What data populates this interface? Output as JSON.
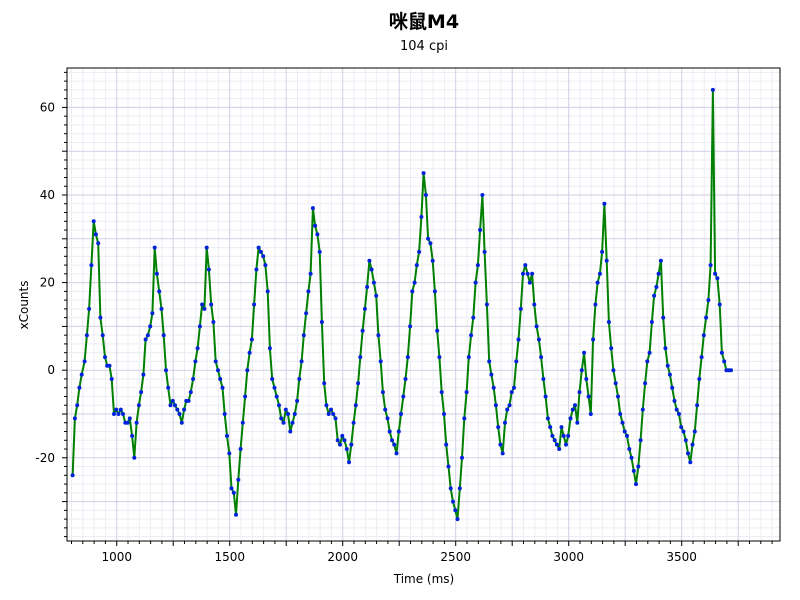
{
  "chart_data": {
    "type": "line",
    "title": "咪鼠M4",
    "subtitle": "104 cpi",
    "xlabel": "Time (ms)",
    "ylabel": "xCounts",
    "xlim": [
      780,
      3935
    ],
    "ylim": [
      -39,
      69
    ],
    "x_ticks": [
      1000,
      1500,
      2000,
      2500,
      3000,
      3500
    ],
    "y_ticks": [
      -20,
      0,
      20,
      40,
      60
    ],
    "grid": true,
    "colors": {
      "line": "#008000",
      "points": "#0022dd",
      "grid_major": "#cfcfe6",
      "grid_minor": "#ececf4",
      "axis": "#000000"
    },
    "series": [
      {
        "name": "xCounts",
        "points": [
          [
            805,
            -24
          ],
          [
            815,
            -11
          ],
          [
            825,
            -8
          ],
          [
            835,
            -4
          ],
          [
            845,
            -1
          ],
          [
            858,
            2
          ],
          [
            868,
            8
          ],
          [
            878,
            14
          ],
          [
            888,
            24
          ],
          [
            898,
            34
          ],
          [
            908,
            31
          ],
          [
            918,
            29
          ],
          [
            928,
            12
          ],
          [
            938,
            8
          ],
          [
            948,
            3
          ],
          [
            958,
            1
          ],
          [
            968,
            1
          ],
          [
            978,
            -2
          ],
          [
            988,
            -10
          ],
          [
            998,
            -9
          ],
          [
            1008,
            -10
          ],
          [
            1018,
            -9
          ],
          [
            1028,
            -10
          ],
          [
            1038,
            -12
          ],
          [
            1048,
            -12
          ],
          [
            1058,
            -11
          ],
          [
            1068,
            -15
          ],
          [
            1078,
            -20
          ],
          [
            1088,
            -12
          ],
          [
            1098,
            -8
          ],
          [
            1108,
            -5
          ],
          [
            1118,
            -1
          ],
          [
            1128,
            7
          ],
          [
            1138,
            8
          ],
          [
            1148,
            10
          ],
          [
            1158,
            13
          ],
          [
            1168,
            28
          ],
          [
            1178,
            22
          ],
          [
            1188,
            18
          ],
          [
            1198,
            14
          ],
          [
            1208,
            8
          ],
          [
            1218,
            0
          ],
          [
            1228,
            -4
          ],
          [
            1238,
            -8
          ],
          [
            1248,
            -7
          ],
          [
            1258,
            -8
          ],
          [
            1268,
            -9
          ],
          [
            1278,
            -10
          ],
          [
            1288,
            -12
          ],
          [
            1298,
            -9
          ],
          [
            1308,
            -7
          ],
          [
            1318,
            -7
          ],
          [
            1328,
            -5
          ],
          [
            1338,
            -2
          ],
          [
            1348,
            2
          ],
          [
            1358,
            5
          ],
          [
            1368,
            10
          ],
          [
            1378,
            15
          ],
          [
            1388,
            14
          ],
          [
            1398,
            28
          ],
          [
            1408,
            23
          ],
          [
            1418,
            15
          ],
          [
            1428,
            11
          ],
          [
            1438,
            2
          ],
          [
            1448,
            0
          ],
          [
            1458,
            -2
          ],
          [
            1468,
            -4
          ],
          [
            1478,
            -10
          ],
          [
            1488,
            -15
          ],
          [
            1498,
            -19
          ],
          [
            1508,
            -27
          ],
          [
            1518,
            -28
          ],
          [
            1528,
            -33
          ],
          [
            1538,
            -25
          ],
          [
            1548,
            -18
          ],
          [
            1558,
            -12
          ],
          [
            1568,
            -6
          ],
          [
            1578,
            0
          ],
          [
            1588,
            4
          ],
          [
            1598,
            7
          ],
          [
            1608,
            15
          ],
          [
            1618,
            23
          ],
          [
            1628,
            28
          ],
          [
            1638,
            27
          ],
          [
            1648,
            26
          ],
          [
            1658,
            24
          ],
          [
            1668,
            18
          ],
          [
            1678,
            5
          ],
          [
            1688,
            -2
          ],
          [
            1698,
            -4
          ],
          [
            1708,
            -6
          ],
          [
            1718,
            -8
          ],
          [
            1728,
            -11
          ],
          [
            1738,
            -12
          ],
          [
            1748,
            -9
          ],
          [
            1758,
            -10
          ],
          [
            1768,
            -14
          ],
          [
            1778,
            -12
          ],
          [
            1788,
            -10
          ],
          [
            1798,
            -7
          ],
          [
            1808,
            -2
          ],
          [
            1818,
            2
          ],
          [
            1828,
            8
          ],
          [
            1838,
            13
          ],
          [
            1848,
            18
          ],
          [
            1858,
            22
          ],
          [
            1868,
            37
          ],
          [
            1878,
            33
          ],
          [
            1888,
            31
          ],
          [
            1898,
            27
          ],
          [
            1908,
            11
          ],
          [
            1918,
            -3
          ],
          [
            1928,
            -8
          ],
          [
            1938,
            -10
          ],
          [
            1948,
            -9
          ],
          [
            1958,
            -10
          ],
          [
            1968,
            -11
          ],
          [
            1978,
            -16
          ],
          [
            1988,
            -17
          ],
          [
            1998,
            -15
          ],
          [
            2008,
            -16
          ],
          [
            2018,
            -18
          ],
          [
            2028,
            -21
          ],
          [
            2038,
            -17
          ],
          [
            2048,
            -12
          ],
          [
            2058,
            -8
          ],
          [
            2068,
            -3
          ],
          [
            2078,
            3
          ],
          [
            2088,
            9
          ],
          [
            2098,
            14
          ],
          [
            2108,
            19
          ],
          [
            2118,
            25
          ],
          [
            2128,
            23
          ],
          [
            2138,
            20
          ],
          [
            2148,
            17
          ],
          [
            2158,
            8
          ],
          [
            2168,
            2
          ],
          [
            2178,
            -5
          ],
          [
            2188,
            -9
          ],
          [
            2198,
            -11
          ],
          [
            2208,
            -14
          ],
          [
            2218,
            -16
          ],
          [
            2228,
            -17
          ],
          [
            2238,
            -19
          ],
          [
            2248,
            -14
          ],
          [
            2258,
            -10
          ],
          [
            2268,
            -6
          ],
          [
            2278,
            -2
          ],
          [
            2288,
            3
          ],
          [
            2298,
            10
          ],
          [
            2308,
            18
          ],
          [
            2318,
            20
          ],
          [
            2328,
            24
          ],
          [
            2338,
            27
          ],
          [
            2348,
            35
          ],
          [
            2358,
            45
          ],
          [
            2368,
            40
          ],
          [
            2378,
            30
          ],
          [
            2388,
            29
          ],
          [
            2398,
            25
          ],
          [
            2408,
            18
          ],
          [
            2418,
            9
          ],
          [
            2428,
            3
          ],
          [
            2438,
            -5
          ],
          [
            2448,
            -10
          ],
          [
            2458,
            -17
          ],
          [
            2468,
            -22
          ],
          [
            2478,
            -27
          ],
          [
            2488,
            -30
          ],
          [
            2498,
            -32
          ],
          [
            2508,
            -34
          ],
          [
            2518,
            -27
          ],
          [
            2528,
            -20
          ],
          [
            2538,
            -11
          ],
          [
            2548,
            -5
          ],
          [
            2558,
            3
          ],
          [
            2568,
            8
          ],
          [
            2578,
            12
          ],
          [
            2588,
            20
          ],
          [
            2598,
            24
          ],
          [
            2608,
            32
          ],
          [
            2618,
            40
          ],
          [
            2628,
            27
          ],
          [
            2638,
            15
          ],
          [
            2648,
            2
          ],
          [
            2658,
            -1
          ],
          [
            2668,
            -4
          ],
          [
            2678,
            -8
          ],
          [
            2688,
            -13
          ],
          [
            2698,
            -17
          ],
          [
            2708,
            -19
          ],
          [
            2718,
            -12
          ],
          [
            2728,
            -9
          ],
          [
            2738,
            -8
          ],
          [
            2748,
            -5
          ],
          [
            2758,
            -4
          ],
          [
            2768,
            2
          ],
          [
            2778,
            7
          ],
          [
            2788,
            14
          ],
          [
            2798,
            22
          ],
          [
            2808,
            24
          ],
          [
            2818,
            22
          ],
          [
            2828,
            20
          ],
          [
            2838,
            22
          ],
          [
            2848,
            15
          ],
          [
            2858,
            10
          ],
          [
            2868,
            7
          ],
          [
            2878,
            3
          ],
          [
            2888,
            -2
          ],
          [
            2898,
            -6
          ],
          [
            2908,
            -11
          ],
          [
            2918,
            -13
          ],
          [
            2928,
            -15
          ],
          [
            2938,
            -16
          ],
          [
            2948,
            -17
          ],
          [
            2958,
            -18
          ],
          [
            2968,
            -13
          ],
          [
            2978,
            -15
          ],
          [
            2988,
            -17
          ],
          [
            2998,
            -15
          ],
          [
            3008,
            -11
          ],
          [
            3018,
            -9
          ],
          [
            3028,
            -8
          ],
          [
            3038,
            -12
          ],
          [
            3048,
            -5
          ],
          [
            3058,
            0
          ],
          [
            3068,
            4
          ],
          [
            3078,
            -2
          ],
          [
            3088,
            -6
          ],
          [
            3098,
            -10
          ],
          [
            3108,
            7
          ],
          [
            3118,
            15
          ],
          [
            3128,
            20
          ],
          [
            3138,
            22
          ],
          [
            3148,
            27
          ],
          [
            3158,
            38
          ],
          [
            3168,
            25
          ],
          [
            3178,
            11
          ],
          [
            3188,
            5
          ],
          [
            3198,
            0
          ],
          [
            3208,
            -3
          ],
          [
            3218,
            -6
          ],
          [
            3228,
            -10
          ],
          [
            3238,
            -12
          ],
          [
            3248,
            -14
          ],
          [
            3258,
            -15
          ],
          [
            3268,
            -18
          ],
          [
            3278,
            -20
          ],
          [
            3288,
            -23
          ],
          [
            3298,
            -26
          ],
          [
            3308,
            -22
          ],
          [
            3318,
            -16
          ],
          [
            3328,
            -9
          ],
          [
            3338,
            -3
          ],
          [
            3348,
            2
          ],
          [
            3358,
            4
          ],
          [
            3368,
            11
          ],
          [
            3378,
            17
          ],
          [
            3388,
            19
          ],
          [
            3398,
            22
          ],
          [
            3408,
            25
          ],
          [
            3418,
            12
          ],
          [
            3428,
            5
          ],
          [
            3438,
            1
          ],
          [
            3448,
            -1
          ],
          [
            3458,
            -4
          ],
          [
            3468,
            -7
          ],
          [
            3478,
            -9
          ],
          [
            3488,
            -10
          ],
          [
            3498,
            -13
          ],
          [
            3508,
            -14
          ],
          [
            3518,
            -16
          ],
          [
            3528,
            -19
          ],
          [
            3538,
            -21
          ],
          [
            3548,
            -17
          ],
          [
            3558,
            -14
          ],
          [
            3568,
            -8
          ],
          [
            3578,
            -2
          ],
          [
            3588,
            3
          ],
          [
            3598,
            8
          ],
          [
            3608,
            12
          ],
          [
            3618,
            16
          ],
          [
            3628,
            24
          ],
          [
            3638,
            64
          ],
          [
            3648,
            22
          ],
          [
            3658,
            21
          ],
          [
            3668,
            15
          ],
          [
            3678,
            4
          ],
          [
            3688,
            2
          ],
          [
            3698,
            0
          ],
          [
            3708,
            0
          ],
          [
            3718,
            0
          ]
        ]
      }
    ]
  }
}
